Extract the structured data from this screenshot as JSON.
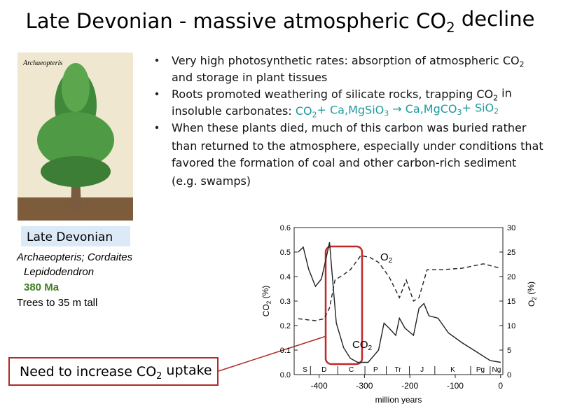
{
  "title": [
    {
      "text": "Late Devonian - massive atmospheric CO"
    },
    {
      "sub": "2"
    },
    {
      "text": " decline"
    }
  ],
  "figure": {
    "label": "Archaeopteris",
    "caption": "Late Devonian"
  },
  "taxa_line1": "Archaeopteris; Cordaites",
  "taxa_line2": "Lepidodendron",
  "age": "380 Ma",
  "height_note": "Trees to 35 m tall",
  "bullets": [
    [
      [
        {
          "text": "Very high photosynthetic rates: absorption of atmospheric CO"
        },
        {
          "sub": "2"
        }
      ],
      [
        {
          "text": "and storage in plant tissues"
        }
      ]
    ],
    [
      [
        {
          "text": "Roots promoted weathering of silicate rocks, trapping CO"
        },
        {
          "sub": "2"
        },
        {
          "text": " in"
        }
      ],
      [
        {
          "text": "insoluble carbonates:  "
        },
        {
          "text": "CO",
          "color": "#1f9aa0"
        },
        {
          "sub": "2",
          "color": "#1f9aa0"
        },
        {
          "text": "+  Ca,MgSiO",
          "color": "#1f9aa0"
        },
        {
          "sub": "3",
          "color": "#1f9aa0"
        },
        {
          "text": " → Ca,MgCO",
          "color": "#1f9aa0"
        },
        {
          "sub": "3",
          "color": "#1f9aa0"
        },
        {
          "text": "+  SiO",
          "color": "#1f9aa0"
        },
        {
          "sub": "2",
          "color": "#1f9aa0"
        }
      ]
    ],
    [
      [
        {
          "text": "When these plants died, much of this carbon was buried rather"
        }
      ],
      [
        {
          "text": "than returned to the atmosphere, especially under conditions that"
        }
      ],
      [
        {
          "text": "favored the formation of coal and other carbon-rich sediment"
        }
      ],
      [
        {
          "text": "(e.g. swamps)"
        }
      ]
    ]
  ],
  "callout": [
    {
      "text": "Need to increase CO"
    },
    {
      "sub": "2"
    },
    {
      "text": " uptake"
    }
  ],
  "chart_data": {
    "type": "line",
    "xlabel": "million years",
    "ylabel": [
      {
        "text": "CO"
      },
      {
        "sub": "2"
      },
      {
        "text": " (%)"
      }
    ],
    "y2label": [
      {
        "text": "O"
      },
      {
        "sub": "2"
      },
      {
        "text": " (%)"
      }
    ],
    "xlim": [
      -455,
      5
    ],
    "ylim": [
      0,
      0.6
    ],
    "y2lim": [
      0,
      30
    ],
    "xticks": [
      -400,
      -300,
      -200,
      -100,
      0
    ],
    "yticks": [
      {
        "value": 0,
        "label": "0.0"
      },
      0.1,
      0.2,
      0.3,
      0.4,
      0.5,
      0.6
    ],
    "y2ticks": [
      0,
      5,
      10,
      15,
      20,
      25,
      30
    ],
    "periods": [
      {
        "name": "S",
        "start": -443
      },
      {
        "name": "D",
        "start": -419
      },
      {
        "name": "C",
        "start": -359
      },
      {
        "name": "P",
        "start": -299
      },
      {
        "name": "Tr",
        "start": -252
      },
      {
        "name": "J",
        "start": -201
      },
      {
        "name": "K",
        "start": -145
      },
      {
        "name": "Pg",
        "start": -66
      },
      {
        "name": "Ng",
        "start": -23
      }
    ],
    "annotations": [
      [
        {
          "text": "CO"
        },
        {
          "sub": "2"
        }
      ],
      [
        {
          "text": "O"
        },
        {
          "sub": "2"
        }
      ]
    ],
    "series": [
      {
        "color": "#222222",
        "dash": false,
        "x": [
          -446,
          -435,
          -423,
          -408,
          -395,
          -385,
          -377,
          -369,
          -362,
          -346,
          -331,
          -315,
          -292,
          -269,
          -257,
          -246,
          -231,
          -223,
          -211,
          -192,
          -180,
          -169,
          -158,
          -138,
          -115,
          -85,
          -54,
          -23,
          0
        ],
        "values": [
          0.5,
          0.52,
          0.43,
          0.36,
          0.39,
          0.47,
          0.54,
          0.36,
          0.21,
          0.11,
          0.066,
          0.05,
          0.05,
          0.1,
          0.21,
          0.19,
          0.16,
          0.23,
          0.19,
          0.16,
          0.27,
          0.29,
          0.24,
          0.23,
          0.17,
          0.13,
          0.094,
          0.057,
          0.05
        ]
      },
      {
        "color": "#222222",
        "dash": true,
        "axis": "y2",
        "x": [
          -446,
          -408,
          -389,
          -377,
          -365,
          -346,
          -331,
          -308,
          -288,
          -269,
          -246,
          -223,
          -208,
          -192,
          -180,
          -162,
          -131,
          -85,
          -38,
          0
        ],
        "values": [
          11.4,
          11,
          11.4,
          13.6,
          19.3,
          20.4,
          21.4,
          24.3,
          23.9,
          22.9,
          20,
          15.7,
          19.3,
          15,
          15.7,
          21.4,
          21.4,
          21.7,
          22.6,
          21.7
        ]
      }
    ]
  }
}
